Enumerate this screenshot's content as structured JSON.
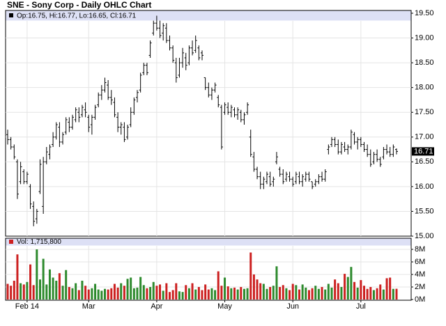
{
  "chart_data": {
    "type": "ohlc",
    "title": "SNE - Sony Corp - Daily OHLC Chart",
    "price_legend": "Op:16.75, Hi:16.77, Lo:16.65, Cl:16.71",
    "volume_legend": "Vol: 1,715,800",
    "categories": [
      null,
      null,
      null,
      null,
      null,
      null,
      "Feb 14",
      null,
      null,
      null,
      null,
      null,
      null,
      null,
      null,
      null,
      null,
      null,
      null,
      null,
      null,
      null,
      null,
      null,
      null,
      "Mar",
      null,
      null,
      null,
      null,
      null,
      null,
      null,
      null,
      null,
      null,
      null,
      null,
      null,
      null,
      null,
      null,
      null,
      null,
      null,
      null,
      "Apr",
      null,
      null,
      null,
      null,
      null,
      null,
      null,
      null,
      null,
      null,
      null,
      null,
      null,
      null,
      null,
      null,
      null,
      null,
      null,
      null,
      "May",
      null,
      null,
      null,
      null,
      null,
      null,
      null,
      null,
      null,
      null,
      null,
      null,
      null,
      null,
      null,
      null,
      null,
      null,
      null,
      null,
      "Jun",
      null,
      null,
      null,
      null,
      null,
      null,
      null,
      null,
      null,
      null,
      null,
      null,
      null,
      null,
      null,
      null,
      null,
      null,
      null,
      null,
      "Jul",
      null,
      null,
      null,
      null,
      null,
      null,
      null,
      null,
      null,
      null,
      null
    ],
    "ohlc": [
      [
        17.05,
        17.15,
        16.85,
        16.95
      ],
      [
        16.95,
        17.0,
        16.75,
        16.8
      ],
      [
        16.8,
        16.85,
        16.55,
        16.6
      ],
      [
        16.5,
        16.55,
        15.75,
        15.85
      ],
      [
        16.1,
        16.5,
        16.05,
        16.4
      ],
      [
        16.3,
        16.35,
        16.05,
        16.1
      ],
      [
        16.1,
        16.3,
        16.05,
        16.25
      ],
      [
        16.0,
        16.05,
        15.55,
        15.65
      ],
      [
        15.6,
        15.7,
        15.2,
        15.3
      ],
      [
        15.35,
        15.55,
        15.25,
        15.5
      ],
      [
        15.9,
        16.55,
        15.85,
        16.45
      ],
      [
        15.6,
        16.6,
        15.45,
        16.5
      ],
      [
        16.5,
        16.8,
        16.45,
        16.7
      ],
      [
        16.65,
        16.85,
        16.55,
        16.8
      ],
      [
        16.85,
        17.1,
        16.8,
        17.0
      ],
      [
        17.0,
        17.3,
        16.95,
        17.25
      ],
      [
        17.2,
        17.3,
        16.8,
        16.9
      ],
      [
        16.9,
        17.1,
        16.85,
        17.05
      ],
      [
        17.1,
        17.4,
        17.05,
        17.35
      ],
      [
        17.3,
        17.4,
        17.1,
        17.2
      ],
      [
        17.2,
        17.45,
        17.15,
        17.4
      ],
      [
        17.35,
        17.6,
        17.3,
        17.55
      ],
      [
        17.5,
        17.6,
        17.3,
        17.4
      ],
      [
        17.45,
        17.65,
        17.4,
        17.6
      ],
      [
        17.55,
        17.7,
        17.4,
        17.5
      ],
      [
        17.4,
        17.45,
        17.1,
        17.2
      ],
      [
        17.25,
        17.45,
        17.05,
        17.4
      ],
      [
        17.4,
        17.65,
        17.35,
        17.6
      ],
      [
        17.65,
        17.9,
        17.6,
        17.85
      ],
      [
        17.85,
        18.05,
        17.75,
        17.95
      ],
      [
        17.95,
        18.2,
        17.9,
        18.1
      ],
      [
        18.05,
        18.15,
        17.75,
        17.8
      ],
      [
        17.8,
        17.95,
        17.65,
        17.75
      ],
      [
        17.7,
        17.8,
        17.4,
        17.45
      ],
      [
        17.4,
        17.5,
        17.1,
        17.2
      ],
      [
        17.2,
        17.3,
        17.05,
        17.25
      ],
      [
        17.2,
        17.3,
        16.9,
        16.95
      ],
      [
        17.0,
        17.25,
        16.95,
        17.2
      ],
      [
        17.25,
        17.6,
        17.2,
        17.5
      ],
      [
        17.5,
        17.8,
        17.45,
        17.75
      ],
      [
        17.8,
        17.95,
        17.7,
        17.9
      ],
      [
        17.95,
        18.3,
        17.9,
        18.25
      ],
      [
        18.3,
        18.5,
        18.25,
        18.45
      ],
      [
        18.45,
        18.5,
        18.25,
        18.3
      ],
      [
        18.65,
        18.95,
        18.6,
        18.9
      ],
      [
        19.1,
        19.35,
        19.05,
        19.3
      ],
      [
        19.3,
        19.45,
        19.15,
        19.2
      ],
      [
        19.2,
        19.35,
        19.0,
        19.05
      ],
      [
        19.1,
        19.3,
        18.95,
        19.25
      ],
      [
        19.2,
        19.3,
        18.9,
        18.95
      ],
      [
        18.95,
        19.05,
        18.75,
        18.8
      ],
      [
        18.8,
        18.85,
        18.5,
        18.55
      ],
      [
        18.5,
        18.6,
        18.1,
        18.2
      ],
      [
        18.25,
        18.6,
        18.2,
        18.5
      ],
      [
        18.5,
        18.8,
        18.4,
        18.7
      ],
      [
        18.6,
        18.7,
        18.35,
        18.45
      ],
      [
        18.5,
        18.85,
        18.45,
        18.8
      ],
      [
        18.8,
        18.95,
        18.65,
        18.7
      ],
      [
        18.75,
        19.05,
        18.7,
        18.95
      ],
      [
        18.8,
        18.85,
        18.55,
        18.6
      ],
      [
        18.7,
        18.75,
        18.55,
        18.65
      ],
      [
        18.2,
        18.2,
        17.95,
        18.0
      ],
      [
        18.0,
        18.1,
        17.8,
        17.85
      ],
      [
        17.85,
        18.0,
        17.75,
        17.95
      ],
      [
        17.95,
        18.1,
        17.9,
        18.05
      ],
      [
        17.8,
        17.85,
        17.6,
        17.65
      ],
      [
        17.6,
        17.65,
        16.75,
        16.8
      ],
      [
        17.5,
        17.7,
        17.45,
        17.65
      ],
      [
        17.6,
        17.7,
        17.45,
        17.5
      ],
      [
        17.5,
        17.65,
        17.4,
        17.6
      ],
      [
        17.55,
        17.6,
        17.4,
        17.45
      ],
      [
        17.45,
        17.6,
        17.35,
        17.55
      ],
      [
        17.5,
        17.55,
        17.3,
        17.35
      ],
      [
        17.35,
        17.5,
        17.25,
        17.45
      ],
      [
        17.5,
        17.7,
        17.45,
        17.65
      ],
      [
        17.0,
        17.15,
        16.6,
        16.65
      ],
      [
        16.6,
        16.7,
        16.3,
        16.35
      ],
      [
        16.35,
        16.4,
        16.15,
        16.2
      ],
      [
        16.2,
        16.3,
        15.95,
        16.05
      ],
      [
        16.05,
        16.2,
        15.95,
        16.15
      ],
      [
        16.1,
        16.3,
        16.05,
        16.25
      ],
      [
        16.2,
        16.3,
        16.0,
        16.05
      ],
      [
        16.1,
        16.2,
        16.0,
        16.15
      ],
      [
        16.5,
        16.7,
        16.45,
        16.6
      ],
      [
        16.35,
        16.4,
        16.2,
        16.25
      ],
      [
        16.25,
        16.35,
        16.05,
        16.1
      ],
      [
        16.15,
        16.3,
        16.1,
        16.25
      ],
      [
        16.2,
        16.3,
        16.1,
        16.15
      ],
      [
        16.15,
        16.2,
        16.0,
        16.05
      ],
      [
        16.1,
        16.3,
        16.05,
        16.25
      ],
      [
        16.2,
        16.3,
        16.05,
        16.1
      ],
      [
        16.1,
        16.25,
        16.0,
        16.2
      ],
      [
        16.15,
        16.3,
        16.1,
        16.25
      ],
      [
        16.25,
        16.3,
        16.1,
        16.15
      ],
      [
        16.1,
        16.1,
        15.95,
        16.0
      ],
      [
        16.05,
        16.15,
        16.0,
        16.1
      ],
      [
        16.1,
        16.25,
        16.05,
        16.2
      ],
      [
        16.2,
        16.3,
        16.1,
        16.15
      ],
      [
        16.15,
        16.35,
        16.1,
        16.3
      ],
      [
        16.75,
        16.85,
        16.65,
        16.8
      ],
      [
        16.85,
        17.0,
        16.8,
        16.95
      ],
      [
        16.95,
        17.0,
        16.8,
        16.85
      ],
      [
        16.85,
        16.95,
        16.65,
        16.7
      ],
      [
        16.7,
        16.9,
        16.65,
        16.85
      ],
      [
        16.8,
        16.9,
        16.7,
        16.75
      ],
      [
        16.75,
        16.85,
        16.65,
        16.8
      ],
      [
        16.8,
        17.15,
        16.75,
        17.1
      ],
      [
        17.05,
        17.1,
        16.85,
        16.9
      ],
      [
        16.9,
        17.0,
        16.75,
        16.95
      ],
      [
        16.95,
        17.0,
        16.8,
        16.85
      ],
      [
        16.85,
        16.9,
        16.7,
        16.75
      ],
      [
        16.75,
        16.85,
        16.6,
        16.65
      ],
      [
        16.65,
        16.75,
        16.4,
        16.45
      ],
      [
        16.5,
        16.7,
        16.45,
        16.65
      ],
      [
        16.65,
        16.75,
        16.5,
        16.55
      ],
      [
        16.55,
        16.6,
        16.4,
        16.45
      ],
      [
        16.6,
        16.8,
        16.55,
        16.75
      ],
      [
        16.75,
        16.85,
        16.65,
        16.7
      ],
      [
        16.7,
        16.8,
        16.6,
        16.65
      ],
      [
        16.65,
        16.85,
        16.6,
        16.8
      ],
      [
        16.75,
        16.77,
        16.65,
        16.71
      ]
    ],
    "color": "#000000",
    "ylim": [
      15,
      19.5
    ],
    "yticks": [
      {
        "value": 15,
        "label": "15.00"
      },
      {
        "value": 15.5,
        "label": "15.50"
      },
      {
        "value": 16,
        "label": "16.00"
      },
      {
        "value": 16.5,
        "label": "16.50"
      },
      {
        "value": 17,
        "label": "17.00"
      },
      {
        "value": 17.5,
        "label": "17.50"
      },
      {
        "value": 18,
        "label": "18.00"
      },
      {
        "value": 18.5,
        "label": "18.50"
      },
      {
        "value": 19,
        "label": "19.00"
      },
      {
        "value": 19.5,
        "label": "19.50"
      }
    ],
    "volume": [
      2.5,
      2.2,
      3.0,
      7.2,
      2.6,
      2.4,
      2.8,
      5.6,
      2.3,
      8.0,
      3.2,
      6.5,
      2.4,
      4.8,
      3.5,
      3.0,
      4.2,
      2.2,
      4.7,
      2.0,
      1.8,
      2.6,
      1.5,
      3.0,
      2.2,
      1.6,
      1.8,
      2.5,
      1.6,
      1.4,
      1.7,
      1.6,
      1.8,
      2.5,
      1.9,
      2.6,
      2.2,
      3.3,
      3.5,
      1.8,
      1.9,
      3.6,
      2.3,
      1.8,
      2.0,
      2.8,
      2.2,
      2.4,
      1.4,
      2.6,
      1.2,
      1.5,
      2.6,
      1.3,
      1.2,
      2.3,
      1.8,
      2.6,
      1.6,
      2.0,
      1.5,
      2.4,
      1.6,
      1.8,
      1.5,
      4.5,
      2.2,
      3.5,
      2.1,
      1.8,
      1.9,
      1.6,
      2.0,
      1.7,
      1.8,
      7.5,
      4.0,
      3.2,
      2.6,
      2.5,
      1.7,
      2.0,
      2.2,
      5.3,
      2.0,
      2.3,
      1.8,
      1.5,
      2.5,
      2.3,
      1.6,
      2.4,
      1.9,
      1.5,
      1.8,
      2.2,
      1.7,
      2.0,
      1.6,
      2.5,
      1.9,
      3.2,
      2.6,
      2.0,
      4.1,
      3.6,
      5.2,
      2.8,
      1.9,
      3.1,
      2.2,
      1.7,
      2.0,
      1.5,
      1.8,
      2.4,
      1.6,
      3.4,
      3.5,
      1.7,
      1.7158
    ],
    "up_color": "#2d8a2d",
    "down_color": "#cc2020",
    "volume_ylim": [
      0,
      8
    ],
    "volume_yticks": [
      {
        "value": 0,
        "label": "0M"
      },
      {
        "value": 2,
        "label": "2M"
      },
      {
        "value": 4,
        "label": "4M"
      },
      {
        "value": 6,
        "label": "6M"
      },
      {
        "value": 8,
        "label": "8M"
      }
    ],
    "grid": true
  }
}
